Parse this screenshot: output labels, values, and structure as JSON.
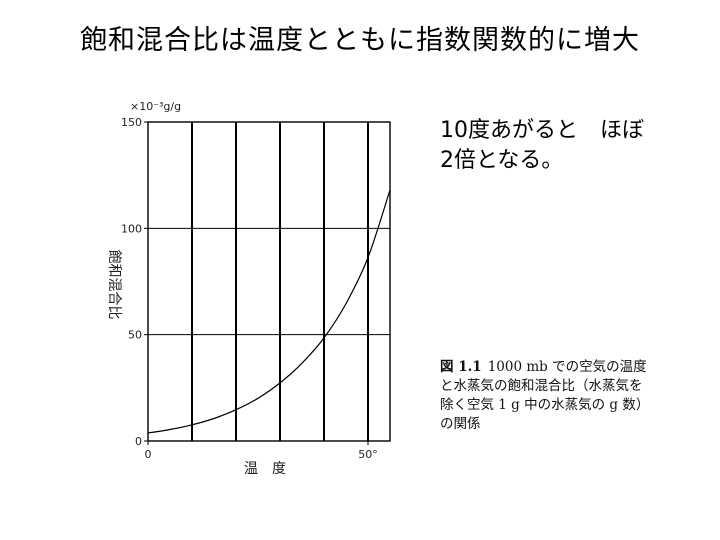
{
  "slide": {
    "title": "飽和混合比は温度とともに指数関数的に増大",
    "note_lines": [
      "10度あがると　ほぼ",
      "2倍となる。"
    ],
    "caption": {
      "figure_label": "図 1.1",
      "lines": [
        "1000 mb での空気の温度",
        "と水蒸気の飽和混合比（水蒸気を",
        "除く空気 1 g 中の水蒸気の g 数）",
        "の関係"
      ]
    }
  },
  "chart_data": {
    "type": "line",
    "xlabel": "温　度",
    "ylabel": "飽和混合比",
    "unit": "×10⁻³g/g",
    "xlim": [
      0,
      55
    ],
    "ylim": [
      0,
      150
    ],
    "x_ticks": [
      0,
      50
    ],
    "x_tick_labels": [
      "0",
      "50°"
    ],
    "y_ticks": [
      0,
      50,
      100,
      150
    ],
    "y_tick_labels": [
      "0",
      "50",
      "100",
      "150"
    ],
    "x_gridlines": [
      10,
      20,
      30,
      40,
      50
    ],
    "y_gridlines": [
      50,
      100
    ],
    "grid": true,
    "series": [
      {
        "x": [
          0,
          5,
          10,
          15,
          20,
          25,
          30,
          35,
          40,
          45,
          50,
          55
        ],
        "y": [
          3.8,
          5.4,
          7.6,
          10.6,
          14.7,
          20.1,
          27.3,
          36.6,
          48.5,
          64.6,
          86.3,
          118
        ]
      }
    ]
  }
}
